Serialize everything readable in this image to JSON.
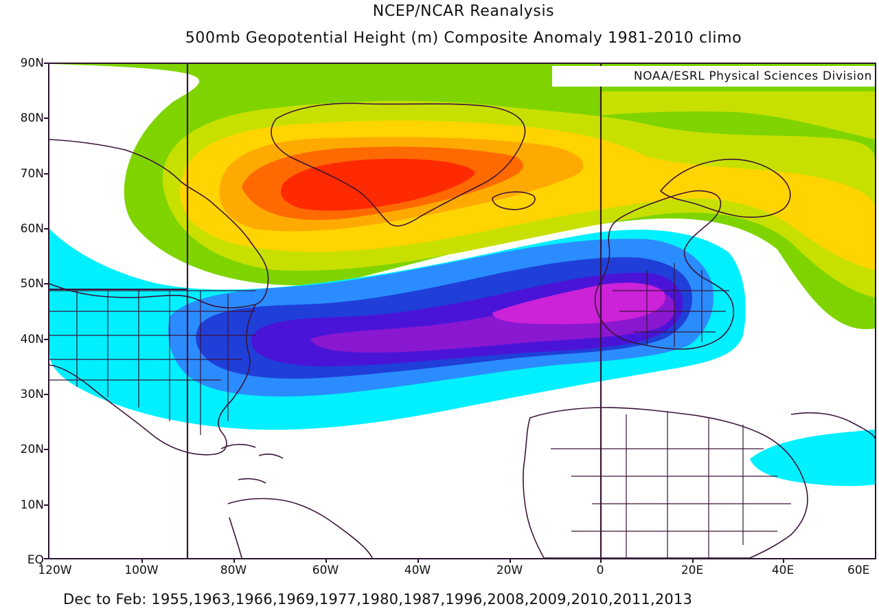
{
  "title": {
    "line1": "NCEP/NCAR Reanalysis",
    "line2": "500mb Geopotential Height (m) Composite Anomaly 1981-2010 climo"
  },
  "credit": "NOAA/ESRL Physical Sciences Division",
  "caption": "Dec to Feb: 1955,1963,1966,1969,1977,1980,1987,1996,2008,2009,2010,2011,2013",
  "axes": {
    "latitude_labels": [
      "90N",
      "80N",
      "70N",
      "60N",
      "50N",
      "40N",
      "30N",
      "20N",
      "10N",
      "EQ"
    ],
    "longitude_labels": [
      "120W",
      "100W",
      "80W",
      "60W",
      "40W",
      "20W",
      "0",
      "20E",
      "40E",
      "60E"
    ]
  },
  "reference_meridians": [
    "90W",
    "0"
  ],
  "anomaly_fills": {
    "positive": [
      "#7fd400",
      "#c8e000",
      "#ffd400",
      "#ffaa00",
      "#ff6a00",
      "#ff2a00"
    ],
    "negative": [
      "#00f0ff",
      "#2b8cff",
      "#1f3fd8",
      "#4a14d8",
      "#8a18d0",
      "#cc22d8"
    ]
  },
  "map_region": "North Atlantic, North America, Europe and Africa"
}
